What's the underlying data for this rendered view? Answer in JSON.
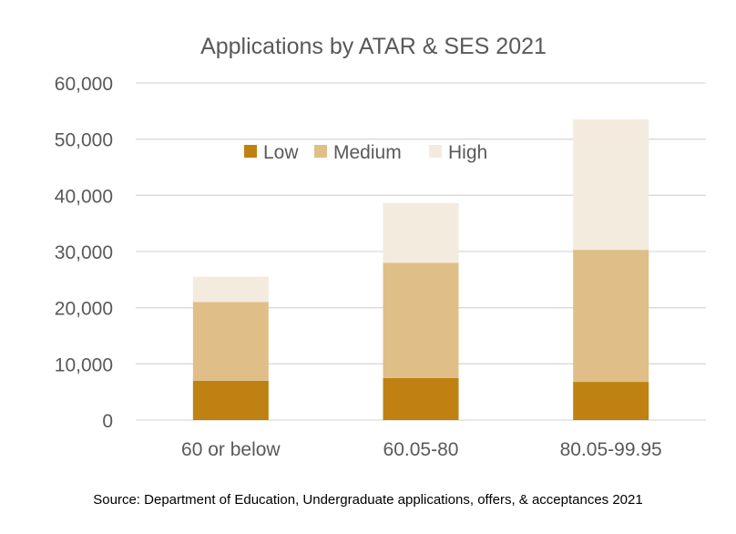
{
  "chart_data": {
    "type": "bar",
    "stacked": true,
    "title": "Applications by ATAR & SES 2021",
    "xlabel": "",
    "ylabel": "",
    "ylim": [
      0,
      60000
    ],
    "yticks": [
      0,
      10000,
      20000,
      30000,
      40000,
      50000,
      60000
    ],
    "ytick_labels": [
      "0",
      "10,000",
      "20,000",
      "30,000",
      "40,000",
      "50,000",
      "60,000"
    ],
    "grid": true,
    "legend_position": "top-center",
    "categories": [
      "60 or below",
      "60.05-80",
      "80.05-99.95"
    ],
    "series": [
      {
        "name": "Low",
        "color": "#BF8212",
        "values": [
          7000,
          7500,
          6800
        ]
      },
      {
        "name": "Medium",
        "color": "#DFBF87",
        "values": [
          14000,
          20500,
          23500
        ]
      },
      {
        "name": "High",
        "color": "#F3EBDD",
        "values": [
          4500,
          10600,
          23200
        ]
      }
    ]
  },
  "source": "Source: Department of Education, Undergraduate applications, offers, & acceptances 2021"
}
